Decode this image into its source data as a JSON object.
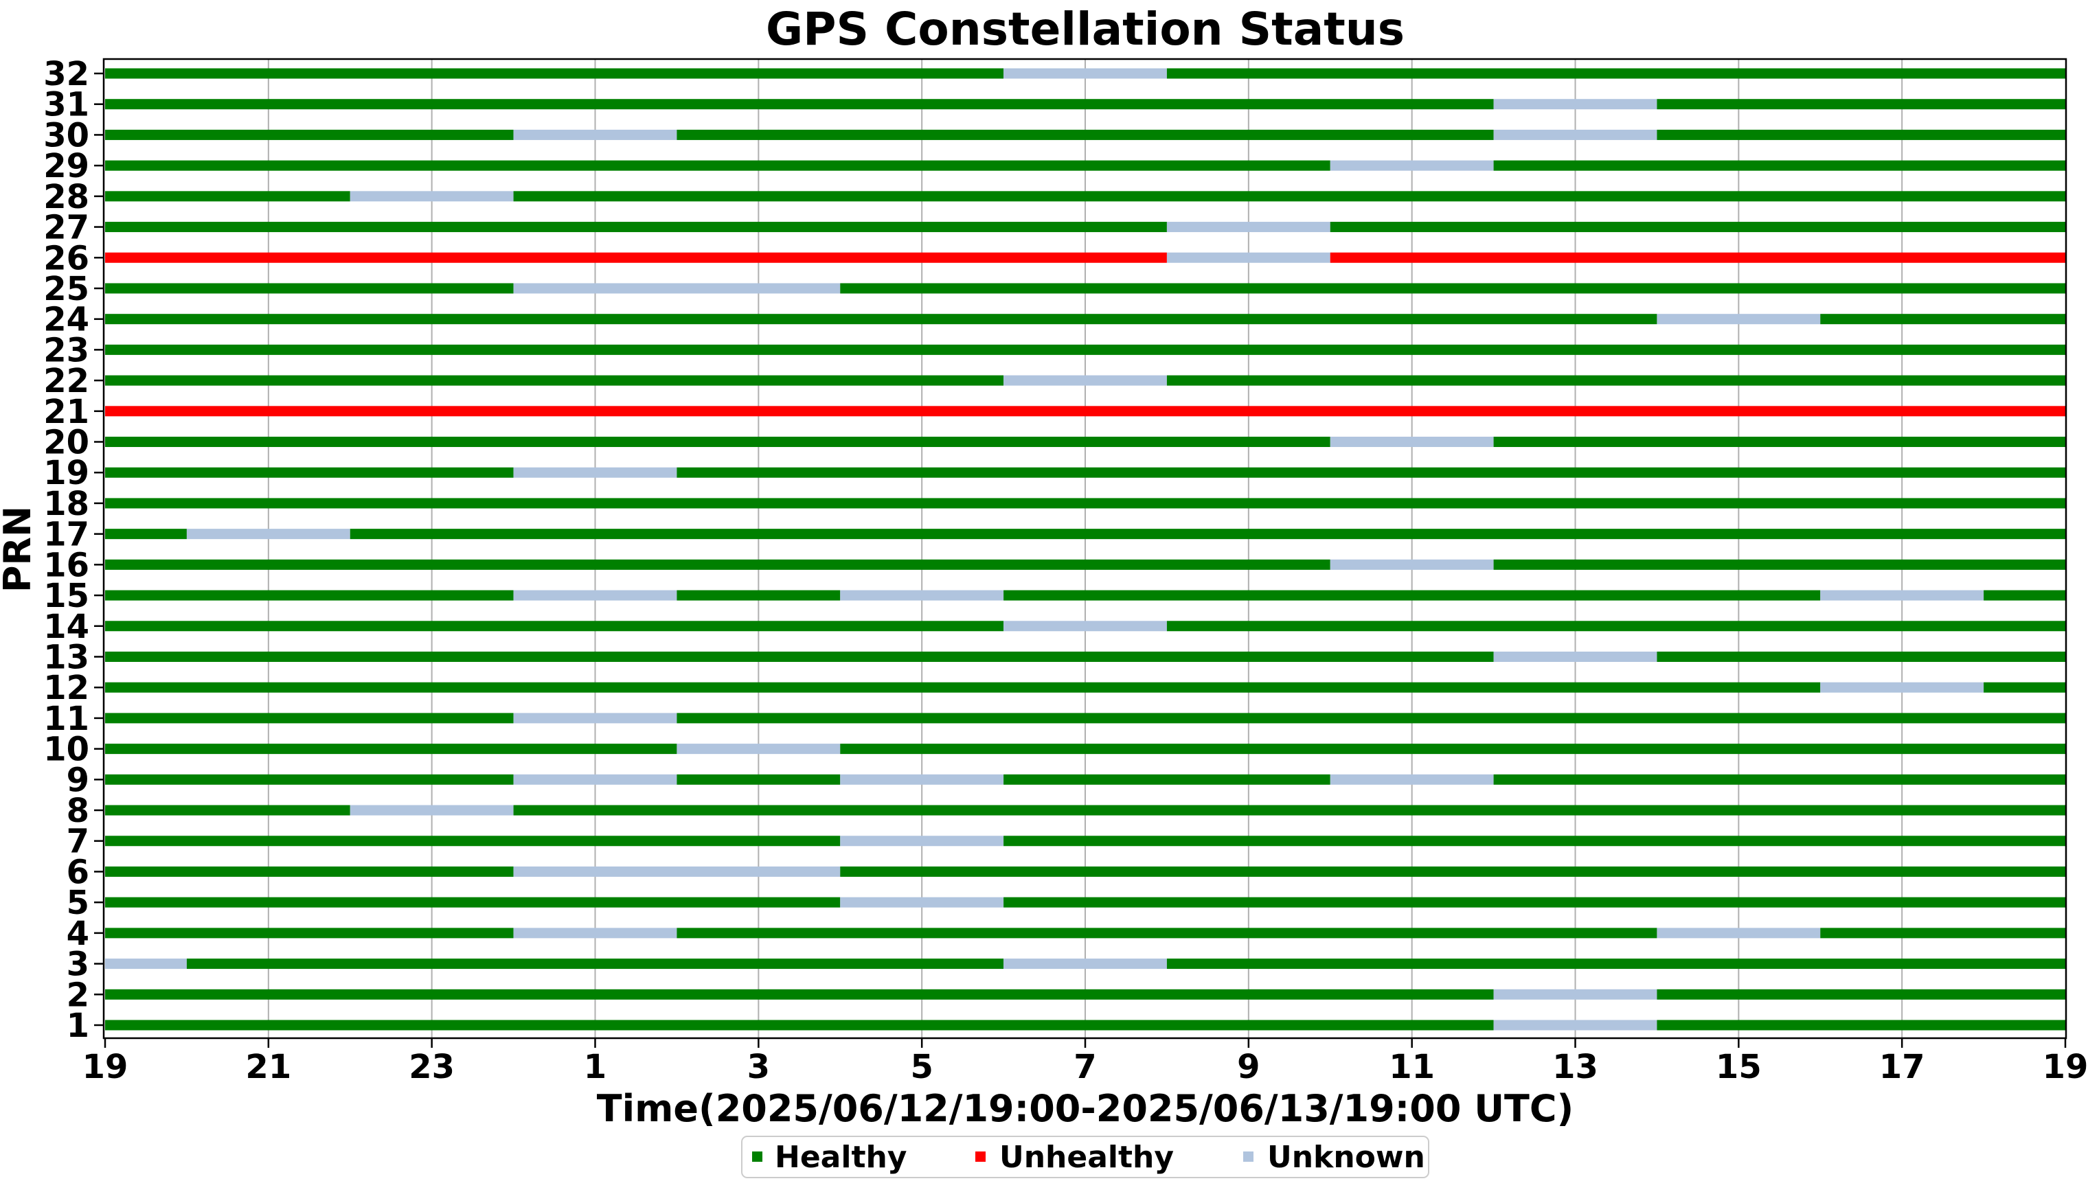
{
  "chart_data": {
    "type": "timeline",
    "title": "GPS Constellation Status",
    "xlabel": "Time(2025/06/12/19:00-2025/06/13/19:00 UTC)",
    "ylabel": "PRN",
    "x_unit": "hours",
    "xlim": [
      0,
      24
    ],
    "x_ticks": [
      {
        "value": 0,
        "label": "19"
      },
      {
        "value": 2,
        "label": "21"
      },
      {
        "value": 4,
        "label": "23"
      },
      {
        "value": 6,
        "label": "1"
      },
      {
        "value": 8,
        "label": "3"
      },
      {
        "value": 10,
        "label": "5"
      },
      {
        "value": 12,
        "label": "7"
      },
      {
        "value": 14,
        "label": "9"
      },
      {
        "value": 16,
        "label": "11"
      },
      {
        "value": 18,
        "label": "13"
      },
      {
        "value": 20,
        "label": "15"
      },
      {
        "value": 22,
        "label": "17"
      },
      {
        "value": 24,
        "label": "19"
      }
    ],
    "grid": "vertical",
    "legend_position": "bottom-center",
    "status_colors": {
      "Healthy": "#008000",
      "Unhealthy": "#ff0000",
      "Unknown": "#b0c4de"
    },
    "legend": [
      "Healthy",
      "Unhealthy",
      "Unknown"
    ],
    "prns": [
      {
        "prn": 1,
        "base": "Healthy",
        "unknown": [
          [
            17,
            19
          ]
        ]
      },
      {
        "prn": 2,
        "base": "Healthy",
        "unknown": [
          [
            17,
            19
          ]
        ]
      },
      {
        "prn": 3,
        "base": "Healthy",
        "unknown": [
          [
            0,
            1
          ],
          [
            11,
            13
          ]
        ]
      },
      {
        "prn": 4,
        "base": "Healthy",
        "unknown": [
          [
            5,
            7
          ],
          [
            19,
            21
          ]
        ]
      },
      {
        "prn": 5,
        "base": "Healthy",
        "unknown": [
          [
            9,
            11
          ]
        ]
      },
      {
        "prn": 6,
        "base": "Healthy",
        "unknown": [
          [
            5,
            9
          ]
        ]
      },
      {
        "prn": 7,
        "base": "Healthy",
        "unknown": [
          [
            9,
            11
          ]
        ]
      },
      {
        "prn": 8,
        "base": "Healthy",
        "unknown": [
          [
            3,
            5
          ]
        ]
      },
      {
        "prn": 9,
        "base": "Healthy",
        "unknown": [
          [
            5,
            7
          ],
          [
            9,
            11
          ],
          [
            15,
            17
          ]
        ]
      },
      {
        "prn": 10,
        "base": "Healthy",
        "unknown": [
          [
            7,
            9
          ]
        ]
      },
      {
        "prn": 11,
        "base": "Healthy",
        "unknown": [
          [
            5,
            7
          ]
        ]
      },
      {
        "prn": 12,
        "base": "Healthy",
        "unknown": [
          [
            21,
            23
          ]
        ]
      },
      {
        "prn": 13,
        "base": "Healthy",
        "unknown": [
          [
            17,
            19
          ]
        ]
      },
      {
        "prn": 14,
        "base": "Healthy",
        "unknown": [
          [
            11,
            13
          ]
        ]
      },
      {
        "prn": 15,
        "base": "Healthy",
        "unknown": [
          [
            5,
            7
          ],
          [
            9,
            11
          ],
          [
            21,
            23
          ]
        ]
      },
      {
        "prn": 16,
        "base": "Healthy",
        "unknown": [
          [
            15,
            17
          ]
        ]
      },
      {
        "prn": 17,
        "base": "Healthy",
        "unknown": [
          [
            1,
            3
          ]
        ]
      },
      {
        "prn": 18,
        "base": "Healthy",
        "unknown": []
      },
      {
        "prn": 19,
        "base": "Healthy",
        "unknown": [
          [
            5,
            7
          ]
        ]
      },
      {
        "prn": 20,
        "base": "Healthy",
        "unknown": [
          [
            15,
            17
          ]
        ]
      },
      {
        "prn": 21,
        "base": "Unhealthy",
        "unknown": []
      },
      {
        "prn": 22,
        "base": "Healthy",
        "unknown": [
          [
            11,
            13
          ]
        ]
      },
      {
        "prn": 23,
        "base": "Healthy",
        "unknown": []
      },
      {
        "prn": 24,
        "base": "Healthy",
        "unknown": [
          [
            19,
            21
          ]
        ]
      },
      {
        "prn": 25,
        "base": "Healthy",
        "unknown": [
          [
            5,
            9
          ]
        ]
      },
      {
        "prn": 26,
        "base": "Unhealthy",
        "unknown": [
          [
            13,
            15
          ]
        ]
      },
      {
        "prn": 27,
        "base": "Healthy",
        "unknown": [
          [
            13,
            15
          ]
        ]
      },
      {
        "prn": 28,
        "base": "Healthy",
        "unknown": [
          [
            3,
            5
          ]
        ]
      },
      {
        "prn": 29,
        "base": "Healthy",
        "unknown": [
          [
            15,
            17
          ]
        ]
      },
      {
        "prn": 30,
        "base": "Healthy",
        "unknown": [
          [
            5,
            7
          ],
          [
            17,
            19
          ]
        ]
      },
      {
        "prn": 31,
        "base": "Healthy",
        "unknown": [
          [
            17,
            19
          ]
        ]
      },
      {
        "prn": 32,
        "base": "Healthy",
        "unknown": [
          [
            11,
            13
          ]
        ]
      }
    ]
  }
}
